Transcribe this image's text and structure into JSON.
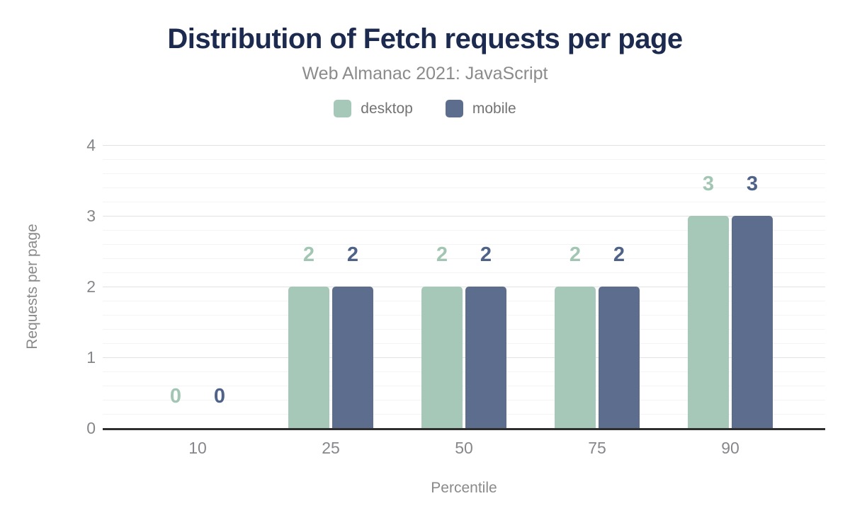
{
  "chart_data": {
    "type": "bar",
    "title": "Distribution of Fetch requests per page",
    "subtitle": "Web Almanac 2021: JavaScript",
    "categories": [
      "10",
      "25",
      "50",
      "75",
      "90"
    ],
    "series": [
      {
        "name": "desktop",
        "values": [
          0,
          2,
          2,
          2,
          3
        ],
        "color": "#a6c8b8",
        "label_color": "#a2c6b3"
      },
      {
        "name": "mobile",
        "values": [
          0,
          2,
          2,
          2,
          3
        ],
        "color": "#5d6d8d",
        "label_color": "#4f6287"
      }
    ],
    "value_labels": {
      "desktop": [
        "0",
        "2",
        "2",
        "2",
        "3"
      ],
      "mobile": [
        "0",
        "2",
        "2",
        "2",
        "3"
      ]
    },
    "xlabel": "Percentile",
    "ylabel": "Requests per page",
    "ylim": [
      0,
      4
    ],
    "yticks": [
      "0",
      "1",
      "2",
      "3",
      "4"
    ],
    "minor_tick_step": 0.2,
    "grid": "horizontal",
    "legend_position": "top",
    "show_value_labels": true
  },
  "colors": {
    "title": "#1b2a4e",
    "subtitle": "#8b8b8b",
    "axis_text": "#85878a",
    "axis_title_text": "#8a8a8a",
    "legend_text": "#737373",
    "gridline_major": "#e2e2e2",
    "gridline_minor": "#f4f4f4",
    "baseline": "#2e2e2e",
    "background": "#ffffff"
  }
}
